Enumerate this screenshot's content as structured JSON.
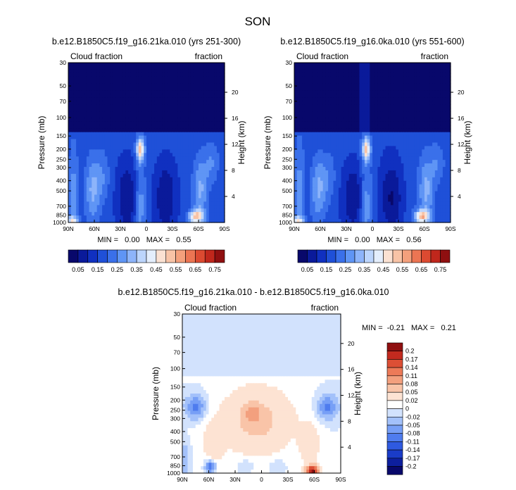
{
  "page": {
    "title": "SON"
  },
  "colors": {
    "abs_scale": [
      "#08086b",
      "#0a1a9a",
      "#1030c0",
      "#1f50d8",
      "#3a70ea",
      "#5f95f5",
      "#8db4fa",
      "#bcd5fc",
      "#e4eefc",
      "#fbe1d2",
      "#f8c3a6",
      "#f4a07c",
      "#ec7553",
      "#dc4a31",
      "#c0271c",
      "#8f0f10"
    ],
    "diff_scale": [
      "#08086b",
      "#0d1f9e",
      "#1a3cc8",
      "#2f5ae0",
      "#4f7cee",
      "#779ff6",
      "#a3c1fa",
      "#d2e2fd",
      "#ffffff",
      "#fde3d3",
      "#f9c4a8",
      "#f3a07e",
      "#ec7a58",
      "#dc4f35",
      "#c22a1f",
      "#8f0f10"
    ]
  },
  "chart_data": [
    {
      "type": "heatmap",
      "title": "b.e12.B1850C5.f19_g16.21ka.010 (yrs 251-300)",
      "left_label": "Cloud fraction",
      "right_label": "fraction",
      "xlabel": "",
      "ylabel": "Pressure (mb)",
      "y2label": "Height (km)",
      "x_ticks": [
        "90N",
        "60N",
        "30N",
        "0",
        "30S",
        "60S",
        "90S"
      ],
      "x_values": [
        90,
        60,
        30,
        0,
        -30,
        -60,
        -90
      ],
      "y_ticks": [
        "30",
        "50",
        "70",
        "100",
        "150",
        "200",
        "250",
        "300",
        "400",
        "500",
        "700",
        "850",
        "1000"
      ],
      "y_values": [
        30,
        50,
        70,
        100,
        150,
        200,
        250,
        300,
        400,
        500,
        700,
        850,
        1000
      ],
      "y2_ticks": [
        "20",
        "16",
        "12",
        "8",
        "4"
      ],
      "y2_values": [
        20,
        16,
        12,
        8,
        4
      ],
      "ylim": [
        1000,
        30
      ],
      "stats": "MIN =   0.00   MAX =   0.55",
      "colorbar": {
        "labels": [
          "0.05",
          "0.15",
          "0.25",
          "0.35",
          "0.45",
          "0.55",
          "0.65",
          "0.75"
        ],
        "levels": [
          0.05,
          0.1,
          0.15,
          0.2,
          0.25,
          0.3,
          0.35,
          0.4,
          0.45,
          0.5,
          0.55,
          0.6,
          0.65,
          0.7,
          0.75
        ]
      }
    },
    {
      "type": "heatmap",
      "title": "b.e12.B1850C5.f19_g16.0ka.010 (yrs 551-600)",
      "left_label": "Cloud fraction",
      "right_label": "fraction",
      "xlabel": "",
      "ylabel": "Pressure (mb)",
      "y2label": "Height (km)",
      "x_ticks": [
        "90N",
        "60N",
        "30N",
        "0",
        "30S",
        "60S",
        "90S"
      ],
      "x_values": [
        90,
        60,
        30,
        0,
        -30,
        -60,
        -90
      ],
      "y_ticks": [
        "30",
        "50",
        "70",
        "100",
        "150",
        "200",
        "250",
        "300",
        "400",
        "500",
        "700",
        "850",
        "1000"
      ],
      "y_values": [
        30,
        50,
        70,
        100,
        150,
        200,
        250,
        300,
        400,
        500,
        700,
        850,
        1000
      ],
      "y2_ticks": [
        "20",
        "16",
        "12",
        "8",
        "4"
      ],
      "y2_values": [
        20,
        16,
        12,
        8,
        4
      ],
      "ylim": [
        1000,
        30
      ],
      "stats": "MIN =   0.00   MAX =   0.56",
      "colorbar": {
        "labels": [
          "0.05",
          "0.15",
          "0.25",
          "0.35",
          "0.45",
          "0.55",
          "0.65",
          "0.75"
        ],
        "levels": [
          0.05,
          0.1,
          0.15,
          0.2,
          0.25,
          0.3,
          0.35,
          0.4,
          0.45,
          0.5,
          0.55,
          0.6,
          0.65,
          0.7,
          0.75
        ]
      }
    },
    {
      "type": "heatmap",
      "title": "b.e12.B1850C5.f19_g16.21ka.010 - b.e12.B1850C5.f19_g16.0ka.010",
      "left_label": "Cloud fraction",
      "right_label": "fraction",
      "xlabel": "",
      "ylabel": "Pressure (mb)",
      "y2label": "Height (km)",
      "x_ticks": [
        "90N",
        "60N",
        "30N",
        "0",
        "30S",
        "60S",
        "90S"
      ],
      "x_values": [
        90,
        60,
        30,
        0,
        -30,
        -60,
        -90
      ],
      "y_ticks": [
        "30",
        "50",
        "70",
        "100",
        "150",
        "200",
        "250",
        "300",
        "400",
        "500",
        "700",
        "850",
        "1000"
      ],
      "y_values": [
        30,
        50,
        70,
        100,
        150,
        200,
        250,
        300,
        400,
        500,
        700,
        850,
        1000
      ],
      "y2_ticks": [
        "20",
        "16",
        "12",
        "8",
        "4"
      ],
      "y2_values": [
        20,
        16,
        12,
        8,
        4
      ],
      "ylim": [
        1000,
        30
      ],
      "stats": "MIN =  -0.21   MAX =   0.21",
      "colorbar": {
        "labels": [
          "0.2",
          "0.17",
          "0.14",
          "0.11",
          "0.08",
          "0.05",
          "0.02",
          "0",
          "-0.02",
          "-0.05",
          "-0.08",
          "-0.11",
          "-0.14",
          "-0.17",
          "-0.2"
        ]
      }
    }
  ]
}
